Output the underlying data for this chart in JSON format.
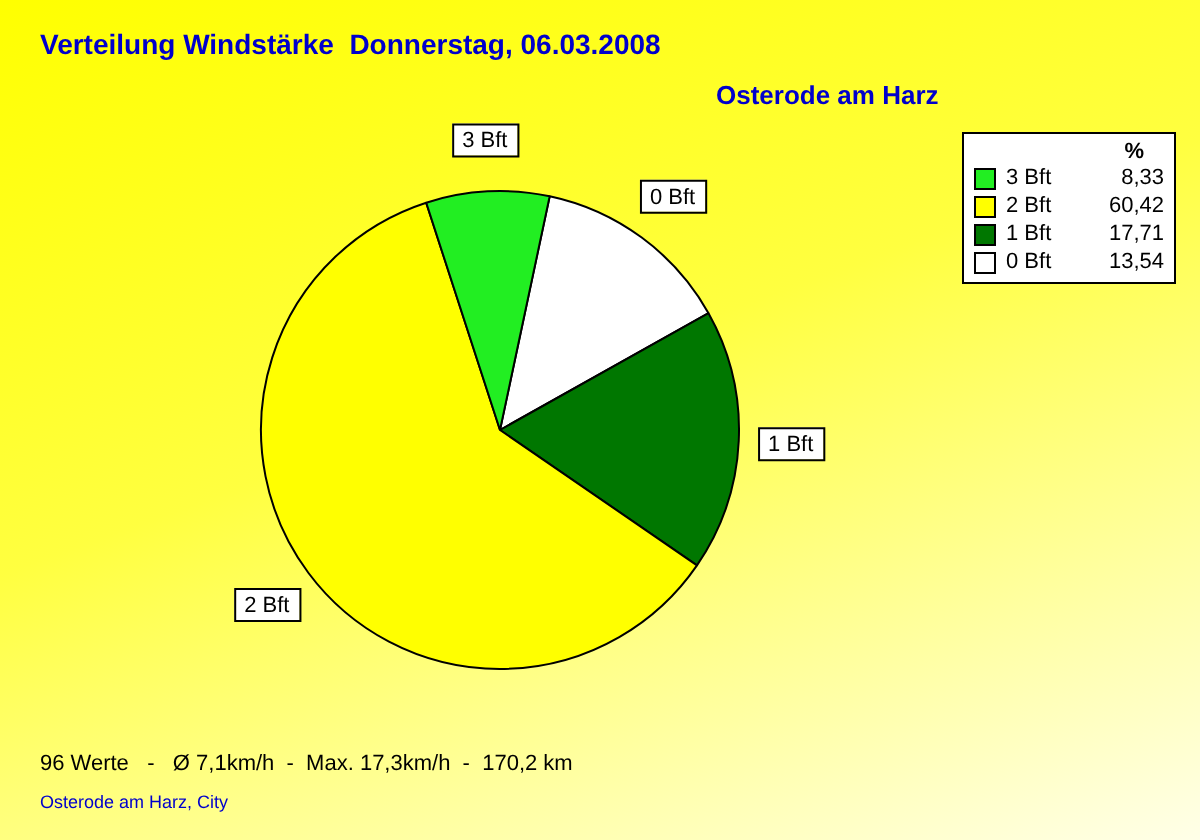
{
  "chart_data": {
    "type": "pie",
    "title": "Verteilung Windstärke  Donnerstag, 06.03.2008",
    "subtitle": "Osterode am Harz",
    "legend_title": "%",
    "categories": [
      "3 Bft",
      "2 Bft",
      "1 Bft",
      "0 Bft"
    ],
    "values": [
      8.33,
      60.42,
      17.71,
      13.54
    ],
    "colors": [
      "#22ee22",
      "#ffff00",
      "#007700",
      "#ffffff"
    ],
    "value_labels": [
      "8,33",
      "60,42",
      "17,71",
      "13,54"
    ],
    "legend": "top right",
    "annotations": [
      "96 Werte   -   Ø 7,1km/h  -  Max. 17,3km/h  -  170,2 km",
      "Osterode am Harz, City"
    ]
  }
}
